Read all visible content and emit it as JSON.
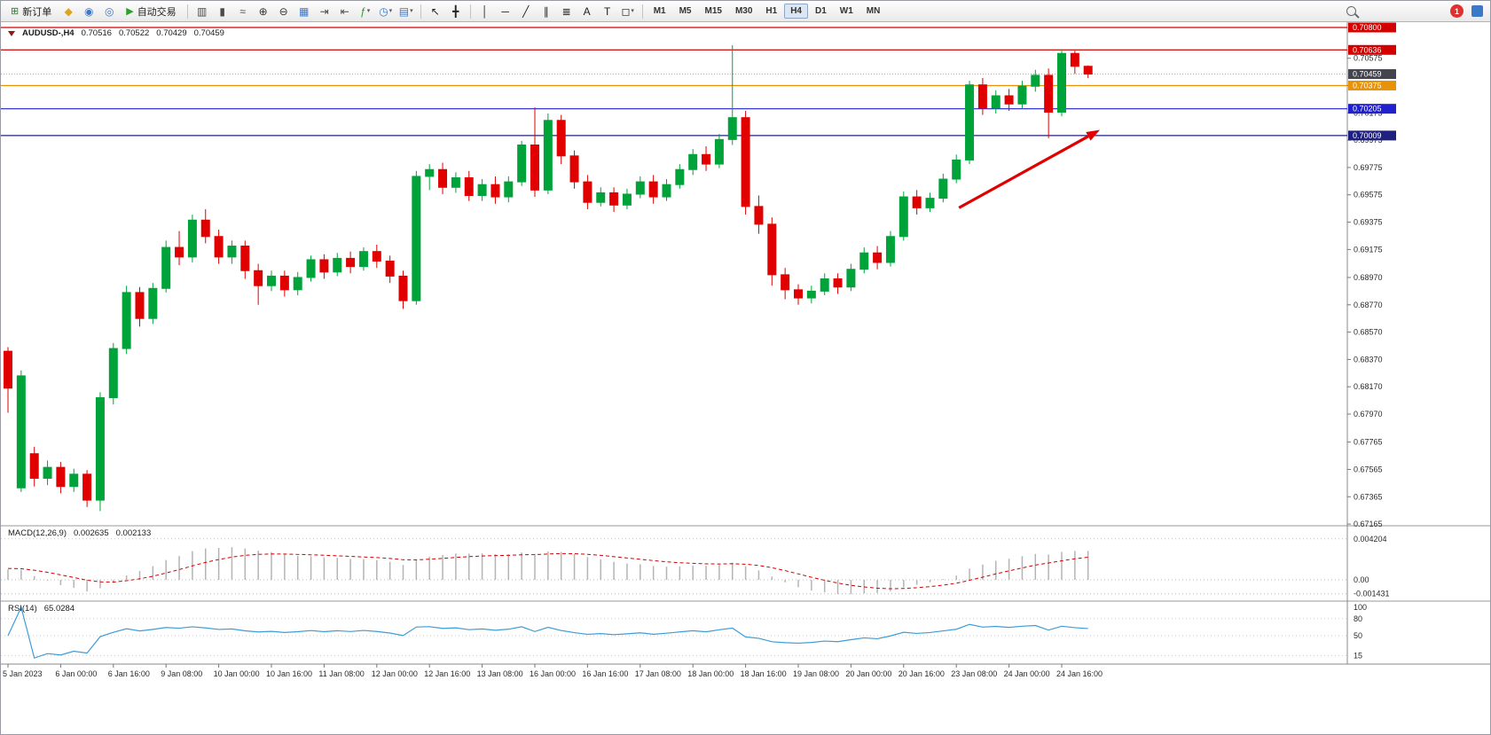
{
  "toolbar": {
    "caret_glyph": "▾",
    "notification_count": "1",
    "timeframes": {
      "labels": [
        "M1",
        "M5",
        "M15",
        "M30",
        "H1",
        "H4",
        "D1",
        "W1",
        "MN"
      ],
      "active": "H4"
    },
    "items": [
      {
        "kind": "btn",
        "name": "new-order-button",
        "glyph": "⊞",
        "glyph_color": "#2f7d32",
        "label": "新订单"
      },
      {
        "kind": "icon",
        "name": "gold-icon",
        "glyph": "◆",
        "glyph_color": "#DBA520"
      },
      {
        "kind": "icon",
        "name": "mql5-community-icon",
        "glyph": "◉",
        "glyph_color": "#3D78C8"
      },
      {
        "kind": "icon",
        "name": "support-icon",
        "glyph": "◎",
        "glyph_color": "#3D78C8"
      },
      {
        "kind": "btn",
        "name": "auto-trading-button",
        "glyph": "▶",
        "glyph_color": "#2CA02C",
        "label": "自动交易"
      },
      {
        "kind": "sep"
      },
      {
        "kind": "icon",
        "name": "bar-chart-icon",
        "glyph": "▥",
        "glyph_color": "#4a4a4a"
      },
      {
        "kind": "icon",
        "name": "candlestick-chart-icon",
        "glyph": "▮",
        "glyph_color": "#4a4a4a"
      },
      {
        "kind": "icon",
        "name": "line-chart-icon",
        "glyph": "≈",
        "glyph_color": "#4a4a4a"
      },
      {
        "kind": "icon",
        "name": "zoom-in-icon",
        "glyph": "⊕",
        "glyph_color": "#333333"
      },
      {
        "kind": "icon",
        "name": "zoom-out-icon",
        "glyph": "⊖",
        "glyph_color": "#333333"
      },
      {
        "kind": "icon",
        "name": "tile-windows-icon",
        "glyph": "▦",
        "glyph_color": "#3D78C8"
      },
      {
        "kind": "icon",
        "name": "auto-scroll-icon",
        "glyph": "⇥",
        "glyph_color": "#4a4a4a"
      },
      {
        "kind": "icon",
        "name": "chart-shift-icon",
        "glyph": "⇤",
        "glyph_color": "#4a4a4a"
      },
      {
        "kind": "icon",
        "name": "indicators-icon",
        "glyph": "ƒ",
        "glyph_color": "#2CA02C",
        "caret": true
      },
      {
        "kind": "icon",
        "name": "periods-icon",
        "glyph": "◷",
        "glyph_color": "#3D78C8",
        "caret": true
      },
      {
        "kind": "icon",
        "name": "templates-icon",
        "glyph": "▤",
        "glyph_color": "#3D78C8",
        "caret": true
      },
      {
        "kind": "sep"
      },
      {
        "kind": "icon",
        "name": "cursor-icon",
        "glyph": "↖",
        "glyph_color": "#222222"
      },
      {
        "kind": "icon",
        "name": "crosshair-icon",
        "glyph": "╋",
        "glyph_color": "#222222"
      },
      {
        "kind": "sep"
      },
      {
        "kind": "icon",
        "name": "vertical-line-icon",
        "glyph": "│",
        "glyph_color": "#222222"
      },
      {
        "kind": "icon",
        "name": "horizontal-line-icon",
        "glyph": "─",
        "glyph_color": "#222222"
      },
      {
        "kind": "icon",
        "name": "trendline-icon",
        "glyph": "╱",
        "glyph_color": "#222222"
      },
      {
        "kind": "icon",
        "name": "equidistant-channel-icon",
        "glyph": "∥",
        "glyph_color": "#222222"
      },
      {
        "kind": "icon",
        "name": "fibonacci-icon",
        "glyph": "≣",
        "glyph_color": "#222222"
      },
      {
        "kind": "icon",
        "name": "text-icon",
        "glyph": "A",
        "glyph_color": "#222222"
      },
      {
        "kind": "icon",
        "name": "text-label-icon",
        "glyph": "T",
        "glyph_color": "#222222"
      },
      {
        "kind": "icon",
        "name": "shapes-icon",
        "glyph": "◻",
        "glyph_color": "#222222",
        "caret": true
      },
      {
        "kind": "sep"
      },
      {
        "kind": "tfgroup"
      },
      {
        "kind": "spacer"
      },
      {
        "kind": "search",
        "name": "search-icon"
      },
      {
        "kind": "gap"
      },
      {
        "kind": "badge",
        "name": "notification-badge"
      },
      {
        "kind": "icon",
        "name": "chat-icon",
        "glyph": "",
        "glyph_color": "#3D78C8",
        "chat": true
      }
    ]
  },
  "chart": {
    "symbol_header": "AUDUSD-,H4",
    "ohlc": {
      "open": "0.70516",
      "high": "0.70522",
      "low": "0.70429",
      "close": "0.70459"
    },
    "current_price": {
      "price": 0.70459,
      "label": "0.70459"
    },
    "price_ticks": [
      "0.70575",
      "0.70375",
      "0.70175",
      "0.69975",
      "0.69775",
      "0.69575",
      "0.69375",
      "0.69175",
      "0.68970",
      "0.68770",
      "0.68570",
      "0.68370",
      "0.68170",
      "0.67970",
      "0.67765",
      "0.67565",
      "0.67365",
      "0.67165"
    ],
    "macd": {
      "title": "MACD(12,26,9)",
      "main_value": "0.002635",
      "signal_value": "0.002133",
      "axis_labels": [
        {
          "text": "0.004204",
          "value": 0.004204
        },
        {
          "text": "0.00",
          "value": 0
        },
        {
          "text": "-0.001431",
          "value": -0.001431
        }
      ]
    },
    "rsi": {
      "title": "RSI(14)",
      "value": "65.0284",
      "axis_labels": [
        {
          "text": "100",
          "value": 100
        },
        {
          "text": "80",
          "value": 80
        },
        {
          "text": "50",
          "value": 50
        },
        {
          "text": "15",
          "value": 15
        }
      ]
    }
  },
  "chart_data": {
    "type": "candlestick",
    "symbol": "AUDUSD",
    "timeframe": "H4",
    "label_every_n_bars": 4,
    "x_labels": [
      "5 Jan 2023",
      "6 Jan 00:00",
      "6 Jan 16:00",
      "9 Jan 08:00",
      "10 Jan 00:00",
      "10 Jan 16:00",
      "11 Jan 08:00",
      "12 Jan 00:00",
      "12 Jan 16:00",
      "13 Jan 08:00",
      "16 Jan 00:00",
      "16 Jan 16:00",
      "17 Jan 08:00",
      "18 Jan 00:00",
      "18 Jan 16:00",
      "19 Jan 08:00",
      "20 Jan 00:00",
      "20 Jan 16:00",
      "23 Jan 08:00",
      "24 Jan 00:00",
      "24 Jan 16:00"
    ],
    "price_axis": {
      "visible_min": 0.671,
      "visible_max": 0.7086
    },
    "candles": [
      [
        0.6843,
        0.6846,
        0.6798,
        0.6816
      ],
      [
        0.6743,
        0.6829,
        0.674,
        0.6825
      ],
      [
        0.6768,
        0.6773,
        0.6744,
        0.675
      ],
      [
        0.675,
        0.6763,
        0.6745,
        0.6758
      ],
      [
        0.6758,
        0.6762,
        0.6739,
        0.6744
      ],
      [
        0.6744,
        0.6757,
        0.674,
        0.6753
      ],
      [
        0.6753,
        0.6756,
        0.6729,
        0.6734
      ],
      [
        0.6734,
        0.6813,
        0.6726,
        0.6809
      ],
      [
        0.6809,
        0.6849,
        0.6804,
        0.6845
      ],
      [
        0.6845,
        0.6891,
        0.6841,
        0.6886
      ],
      [
        0.6886,
        0.689,
        0.6861,
        0.6867
      ],
      [
        0.6867,
        0.6893,
        0.6863,
        0.6889
      ],
      [
        0.6889,
        0.6924,
        0.6886,
        0.6919
      ],
      [
        0.6919,
        0.6931,
        0.6906,
        0.6912
      ],
      [
        0.6912,
        0.6943,
        0.6908,
        0.6939
      ],
      [
        0.6939,
        0.6947,
        0.6922,
        0.6927
      ],
      [
        0.6927,
        0.6932,
        0.6907,
        0.6912
      ],
      [
        0.6912,
        0.6924,
        0.6907,
        0.692
      ],
      [
        0.692,
        0.6924,
        0.6896,
        0.6902
      ],
      [
        0.6902,
        0.6907,
        0.6877,
        0.6891
      ],
      [
        0.6891,
        0.6902,
        0.6887,
        0.6898
      ],
      [
        0.6898,
        0.6902,
        0.6883,
        0.6888
      ],
      [
        0.6888,
        0.6901,
        0.6884,
        0.6897
      ],
      [
        0.6897,
        0.6913,
        0.6894,
        0.691
      ],
      [
        0.691,
        0.6914,
        0.6896,
        0.6901
      ],
      [
        0.6901,
        0.6915,
        0.6898,
        0.6911
      ],
      [
        0.6911,
        0.6916,
        0.69,
        0.6905
      ],
      [
        0.6905,
        0.6919,
        0.6902,
        0.6916
      ],
      [
        0.6916,
        0.6921,
        0.6904,
        0.6909
      ],
      [
        0.6909,
        0.6913,
        0.6893,
        0.6898
      ],
      [
        0.6898,
        0.6902,
        0.6874,
        0.688
      ],
      [
        0.688,
        0.6975,
        0.6877,
        0.6971
      ],
      [
        0.6971,
        0.698,
        0.6961,
        0.6976
      ],
      [
        0.6976,
        0.6981,
        0.6958,
        0.6963
      ],
      [
        0.6963,
        0.6974,
        0.6959,
        0.697
      ],
      [
        0.697,
        0.6975,
        0.6953,
        0.6957
      ],
      [
        0.6957,
        0.6969,
        0.6953,
        0.6965
      ],
      [
        0.6965,
        0.6971,
        0.6951,
        0.6956
      ],
      [
        0.6956,
        0.6971,
        0.6952,
        0.6967
      ],
      [
        0.6967,
        0.6997,
        0.6964,
        0.6994
      ],
      [
        0.6994,
        0.70215,
        0.6956,
        0.6961
      ],
      [
        0.6961,
        0.7017,
        0.6958,
        0.7012
      ],
      [
        0.7012,
        0.7016,
        0.698,
        0.6986
      ],
      [
        0.6986,
        0.699,
        0.6962,
        0.6967
      ],
      [
        0.6967,
        0.6972,
        0.6947,
        0.6952
      ],
      [
        0.6952,
        0.6963,
        0.6949,
        0.6959
      ],
      [
        0.6959,
        0.6963,
        0.6945,
        0.695
      ],
      [
        0.695,
        0.6962,
        0.6947,
        0.6958
      ],
      [
        0.6958,
        0.6971,
        0.6955,
        0.6967
      ],
      [
        0.6967,
        0.6972,
        0.6951,
        0.6956
      ],
      [
        0.6956,
        0.6969,
        0.6953,
        0.6965
      ],
      [
        0.6965,
        0.698,
        0.6962,
        0.6976
      ],
      [
        0.6976,
        0.6991,
        0.6972,
        0.6987
      ],
      [
        0.6987,
        0.6993,
        0.6975,
        0.698
      ],
      [
        0.698,
        0.7002,
        0.6977,
        0.6998
      ],
      [
        0.6998,
        0.7067,
        0.6994,
        0.7014
      ],
      [
        0.7014,
        0.7019,
        0.6943,
        0.6949
      ],
      [
        0.6949,
        0.6957,
        0.6929,
        0.6936
      ],
      [
        0.6936,
        0.6941,
        0.6891,
        0.6899
      ],
      [
        0.6899,
        0.6904,
        0.6881,
        0.6888
      ],
      [
        0.6888,
        0.6892,
        0.6877,
        0.6882
      ],
      [
        0.6882,
        0.6891,
        0.6878,
        0.6887
      ],
      [
        0.6887,
        0.69,
        0.6884,
        0.6896
      ],
      [
        0.6896,
        0.69,
        0.6885,
        0.689
      ],
      [
        0.689,
        0.6907,
        0.6887,
        0.6903
      ],
      [
        0.6903,
        0.6919,
        0.69,
        0.6915
      ],
      [
        0.6915,
        0.692,
        0.6903,
        0.6908
      ],
      [
        0.6908,
        0.6931,
        0.6905,
        0.6927
      ],
      [
        0.6927,
        0.696,
        0.6924,
        0.6956
      ],
      [
        0.6956,
        0.6961,
        0.6943,
        0.6948
      ],
      [
        0.6948,
        0.6959,
        0.6945,
        0.6955
      ],
      [
        0.6955,
        0.6973,
        0.6952,
        0.6969
      ],
      [
        0.6969,
        0.6987,
        0.6966,
        0.6983
      ],
      [
        0.6983,
        0.7041,
        0.698,
        0.7038
      ],
      [
        0.7038,
        0.7043,
        0.7016,
        0.7021
      ],
      [
        0.7021,
        0.7034,
        0.7017,
        0.703
      ],
      [
        0.703,
        0.7035,
        0.7019,
        0.7024
      ],
      [
        0.7024,
        0.7041,
        0.7021,
        0.7037
      ],
      [
        0.7037,
        0.7049,
        0.7033,
        0.7045
      ],
      [
        0.7045,
        0.705,
        0.6999,
        0.7018
      ],
      [
        0.7018,
        0.7064,
        0.7015,
        0.7061
      ],
      [
        0.7061,
        0.7063,
        0.7046,
        0.70516
      ],
      [
        0.70516,
        0.70522,
        0.70429,
        0.70459
      ]
    ],
    "hlines": [
      {
        "price": 0.708,
        "label": "0.70800",
        "color": "#D40000"
      },
      {
        "price": 0.70636,
        "label": "0.70636",
        "color": "#D40000"
      },
      {
        "price": 0.70375,
        "label": "0.70375",
        "color": "#E8920A"
      },
      {
        "price": 0.70205,
        "label": "0.70205",
        "color": "#2020CC"
      },
      {
        "price": 0.70009,
        "label": "0.70009",
        "color": "#202080"
      }
    ],
    "trend_arrow": {
      "from": {
        "bar": 72.2,
        "price": 0.6948
      },
      "to": {
        "bar": 82.9,
        "price": 0.7005
      },
      "color": "#E00000"
    },
    "indicators": [
      {
        "name": "MACD",
        "params": [
          12,
          26,
          9
        ],
        "last_main": 0.002635,
        "last_signal": 0.002133
      },
      {
        "name": "RSI",
        "params": [
          14
        ],
        "last_value": 65.0284
      }
    ]
  },
  "colors": {
    "candle_up": "#00A33A",
    "candle_down": "#E00000",
    "macd_histogram": "#B4B4B4",
    "macd_signal": "#D40000",
    "rsi_line": "#3E9CD8",
    "axis_text": "#2A2A2A",
    "bid_label_bg": "#44444E",
    "grid_sep": "#999999"
  }
}
